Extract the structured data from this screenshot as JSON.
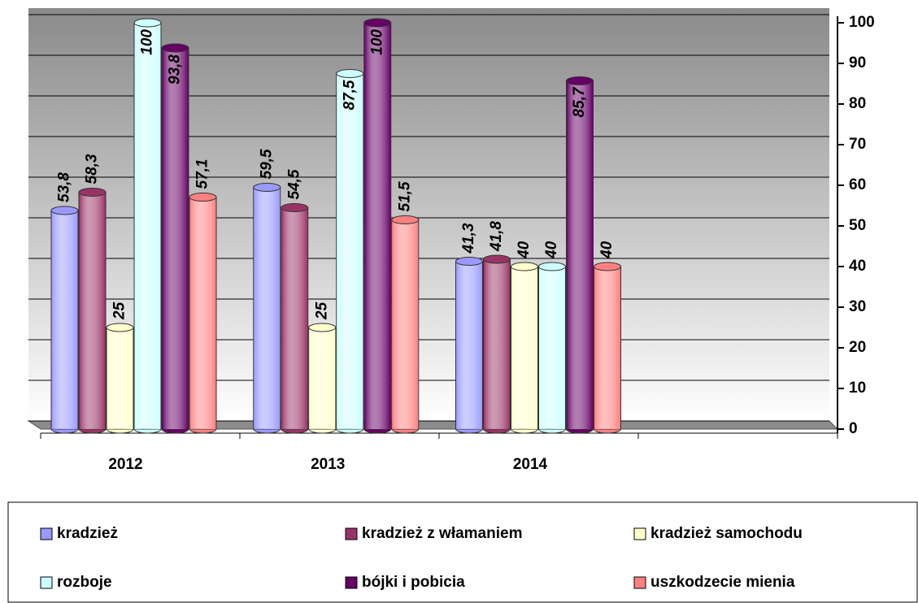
{
  "chart_data": {
    "type": "bar3d",
    "categories": [
      "2012",
      "2013",
      "2014",
      null
    ],
    "series": [
      {
        "name": "kradzież",
        "color": "#9999ff",
        "values": [
          53.8,
          59.5,
          41.3,
          null
        ],
        "value_labels": [
          "53,8",
          "59,5",
          "41,3",
          null
        ]
      },
      {
        "name": "kradzież z włamaniem",
        "color": "#993366",
        "values": [
          58.3,
          54.5,
          41.8,
          null
        ],
        "value_labels": [
          "58,3",
          "54,5",
          "41,8",
          null
        ]
      },
      {
        "name": "kradzież samochodu",
        "color": "#ffffcc",
        "values": [
          25,
          25,
          40,
          null
        ],
        "value_labels": [
          "25",
          "25",
          "40",
          null
        ]
      },
      {
        "name": "rozboje",
        "color": "#ccffff",
        "values": [
          100,
          87.5,
          40,
          null
        ],
        "value_labels": [
          "100",
          "87,5",
          "40",
          null
        ]
      },
      {
        "name": "bójki i pobicia",
        "color": "#660066",
        "values": [
          93.8,
          100,
          85.7,
          null
        ],
        "value_labels": [
          "93,8",
          "100",
          "85,7",
          null
        ]
      },
      {
        "name": "uszkodzecie mienia",
        "color": "#ff8080",
        "values": [
          57.1,
          51.5,
          40,
          null
        ],
        "value_labels": [
          "57,1",
          "51,5",
          "40",
          null
        ]
      }
    ],
    "ylim": [
      0,
      100
    ],
    "yticks": [
      0,
      10,
      20,
      30,
      40,
      50,
      60,
      70,
      80,
      90,
      100
    ],
    "grid": true,
    "legend": "bottom"
  }
}
